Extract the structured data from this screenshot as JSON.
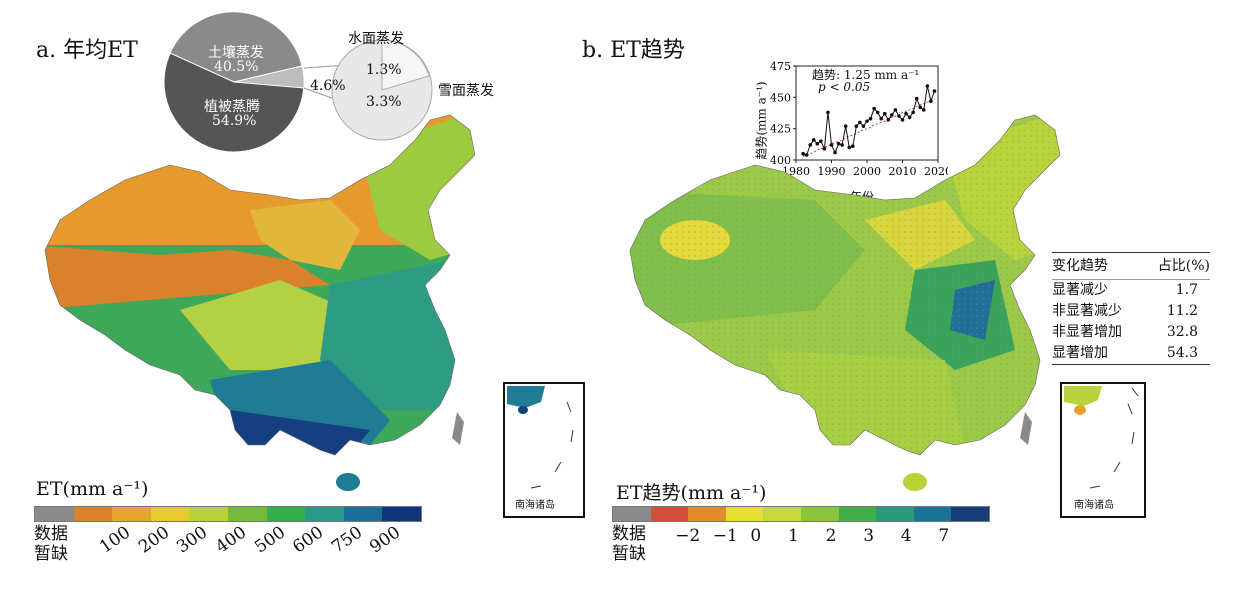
{
  "panel_a": {
    "title": "a. 年均ET",
    "pie": {
      "slices": [
        {
          "label": "土壤蒸发",
          "value_text": "40.5%",
          "value": 40.5,
          "color": "#8a8a8a"
        },
        {
          "label": "植被蒸腾",
          "value_text": "54.9%",
          "value": 54.9,
          "color": "#555555"
        },
        {
          "label": "",
          "value_text": "4.6%",
          "value": 4.6,
          "color": "#cccccc"
        }
      ],
      "sub_pie": [
        {
          "label": "水面蒸发",
          "value_text": "1.3%",
          "value": 1.3
        },
        {
          "label": "雪面蒸发",
          "value_text": "3.3%",
          "value": 3.3
        }
      ]
    },
    "legend": {
      "title": "ET(mm a⁻¹)",
      "missing_label_1": "数据",
      "missing_label_2": "暂缺",
      "colors": [
        "#8a8a8a",
        "#d9822b",
        "#e6a52f",
        "#e7cb2d",
        "#b9d23a",
        "#74bb3c",
        "#35ae4e",
        "#2a9a86",
        "#1a6f98",
        "#12357a"
      ],
      "ticks": [
        "100",
        "200",
        "300",
        "400",
        "500",
        "600",
        "750",
        "900"
      ]
    },
    "inset_label": "南海诸岛"
  },
  "panel_b": {
    "title": "b. ET趋势",
    "inset_chart": {
      "annotation_1": "趋势: 1.25 mm a⁻¹",
      "annotation_2": "p < 0.05",
      "ylabel": "趋势(mm a⁻¹)",
      "xlabel": "年份",
      "yticks": [
        "400",
        "425",
        "450",
        "475"
      ],
      "xticks": [
        "1980",
        "1990",
        "2000",
        "2010",
        "2020"
      ]
    },
    "legend": {
      "title": "ET趋势(mm a⁻¹)",
      "missing_label_1": "数据",
      "missing_label_2": "暂缺",
      "colors": [
        "#8a8a8a",
        "#d24c3a",
        "#e28a2e",
        "#e7df32",
        "#c6d83a",
        "#8bc43f",
        "#41ae4a",
        "#2a9a7a",
        "#1a7496",
        "#183d7a"
      ],
      "ticks": [
        "−2",
        "−1",
        "0",
        "1",
        "2",
        "3",
        "4",
        "7"
      ]
    },
    "table": {
      "headers": [
        "变化趋势",
        "占比(%)"
      ],
      "rows": [
        [
          "显著减少",
          "1.7"
        ],
        [
          "非显著减少",
          "11.2"
        ],
        [
          "非显著增加",
          "32.8"
        ],
        [
          "显著增加",
          "54.3"
        ]
      ]
    },
    "inset_label": "南海诸岛"
  },
  "chart_data": {
    "type": "line",
    "title": "",
    "xlabel": "年份",
    "ylabel": "趋势(mm a⁻¹)",
    "xlim": [
      1980,
      2020
    ],
    "ylim": [
      400,
      475
    ],
    "x": [
      1982,
      1983,
      1984,
      1985,
      1986,
      1987,
      1988,
      1989,
      1990,
      1991,
      1992,
      1993,
      1994,
      1995,
      1996,
      1997,
      1998,
      1999,
      2000,
      2001,
      2002,
      2003,
      2004,
      2005,
      2006,
      2007,
      2008,
      2009,
      2010,
      2011,
      2012,
      2013,
      2014,
      2015,
      2016,
      2017,
      2018,
      2019
    ],
    "series": [
      {
        "name": "",
        "values": [
          405,
          404,
          412,
          416,
          413,
          415,
          409,
          438,
          412,
          406,
          413,
          412,
          427,
          410,
          411,
          427,
          430,
          427,
          431,
          433,
          441,
          438,
          433,
          437,
          432,
          436,
          440,
          435,
          432,
          437,
          434,
          438,
          449,
          442,
          440,
          459,
          447,
          455
        ]
      },
      {
        "name": "",
        "values": [
          403,
          404,
          405,
          406,
          408,
          409,
          410,
          411,
          413,
          414,
          415,
          416,
          418,
          419,
          420,
          421,
          423,
          424,
          425,
          426,
          428,
          429,
          430,
          431,
          433,
          434,
          435,
          436,
          438,
          439,
          440,
          441,
          443,
          444,
          445,
          446,
          448,
          449
        ]
      }
    ]
  }
}
